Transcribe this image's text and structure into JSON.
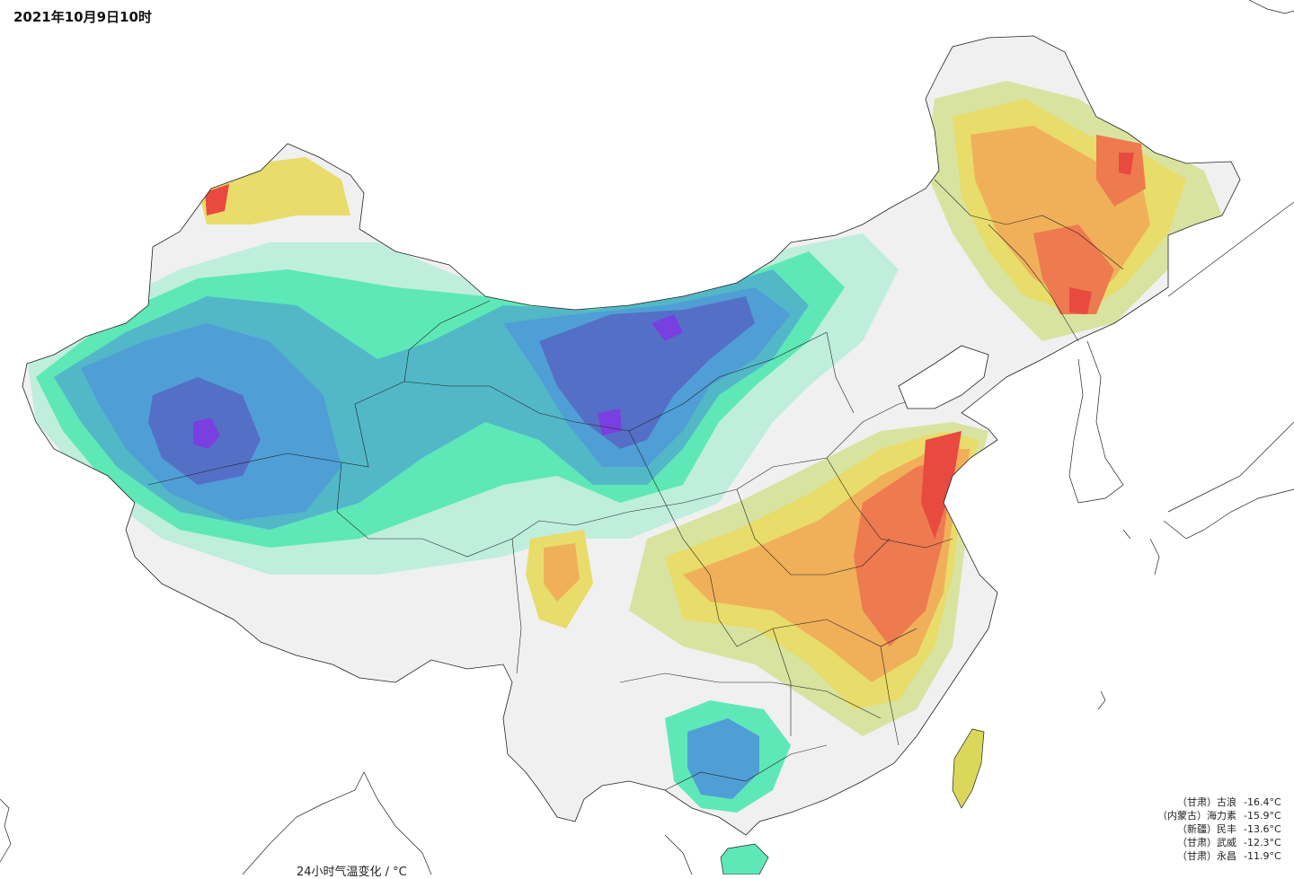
{
  "header": {
    "timestamp": "2021年10月9日10时"
  },
  "legend": {
    "title": "24小时气温变化 / °C"
  },
  "stations": [
    {
      "name": "（甘肃）古浪",
      "value": "-16.4°C"
    },
    {
      "name": "（内蒙古）海力素",
      "value": "-15.9°C"
    },
    {
      "name": "（新疆）民丰",
      "value": "-13.6°C"
    },
    {
      "name": "（甘肃）武威",
      "value": "-12.3°C"
    },
    {
      "name": "（甘肃）永昌",
      "value": "-11.9°C"
    }
  ],
  "colors": {
    "background": "#ffffff",
    "land_neutral": "#f0f0f0",
    "cool_1": "#bfeedd",
    "cool_2": "#5ee8b8",
    "cool_3": "#52b8c8",
    "cool_4": "#4f9fd6",
    "cool_5": "#5470c6",
    "cool_6": "#7a3fe0",
    "warm_1": "#d9e3a0",
    "warm_2": "#e8dc6a",
    "warm_3": "#f0b05a",
    "warm_4": "#ee7a50",
    "warm_5": "#e84a40",
    "taiwan": "#d9d85a",
    "border": "#222222"
  }
}
